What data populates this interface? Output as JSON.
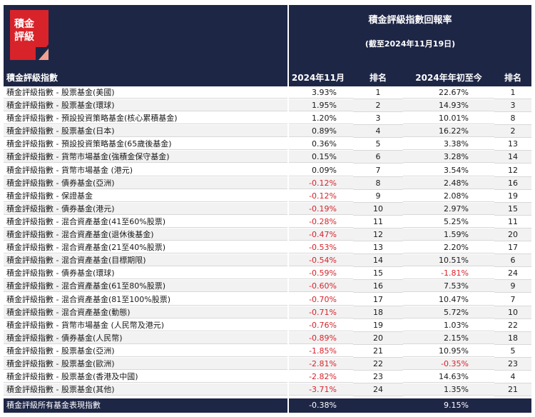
{
  "logo": {
    "line1": "積金",
    "line2": "評級"
  },
  "header": {
    "title": "積金評級指數回報率",
    "subtitle": "(截至2024年11月19日)"
  },
  "columns": {
    "name": "積金評級指數",
    "ret_nov": "2024年11月",
    "rank_nov": "排名",
    "ret_ytd": "2024年年初至今",
    "rank_ytd": "排名"
  },
  "rows": [
    {
      "name": "積金評級指數 - 股票基金(美國)",
      "ret_nov": "3.93%",
      "rank_nov": "1",
      "ret_ytd": "22.67%",
      "rank_ytd": "1"
    },
    {
      "name": "積金評級指數 - 股票基金(環球)",
      "ret_nov": "1.95%",
      "rank_nov": "2",
      "ret_ytd": "14.93%",
      "rank_ytd": "3"
    },
    {
      "name": "積金評級指數 - 預設投資策略基金(核心累積基金)",
      "ret_nov": "1.20%",
      "rank_nov": "3",
      "ret_ytd": "10.01%",
      "rank_ytd": "8"
    },
    {
      "name": "積金評級指數 - 股票基金(日本)",
      "ret_nov": "0.89%",
      "rank_nov": "4",
      "ret_ytd": "16.22%",
      "rank_ytd": "2"
    },
    {
      "name": "積金評級指數 - 預設投資策略基金(65歲後基金)",
      "ret_nov": "0.36%",
      "rank_nov": "5",
      "ret_ytd": "3.38%",
      "rank_ytd": "13"
    },
    {
      "name": "積金評級指數 - 貨幣市場基金(強積金保守基金)",
      "ret_nov": "0.15%",
      "rank_nov": "6",
      "ret_ytd": "3.28%",
      "rank_ytd": "14"
    },
    {
      "name": "積金評級指數 - 貨幣市場基金 (港元)",
      "ret_nov": "0.09%",
      "rank_nov": "7",
      "ret_ytd": "3.54%",
      "rank_ytd": "12"
    },
    {
      "name": "積金評級指數 - 債券基金(亞洲)",
      "ret_nov": "-0.12%",
      "rank_nov": "8",
      "ret_ytd": "2.48%",
      "rank_ytd": "16"
    },
    {
      "name": "積金評級指數 - 保證基金",
      "ret_nov": "-0.12%",
      "rank_nov": "9",
      "ret_ytd": "2.08%",
      "rank_ytd": "19"
    },
    {
      "name": "積金評級指數 - 債券基金(港元)",
      "ret_nov": "-0.19%",
      "rank_nov": "10",
      "ret_ytd": "2.97%",
      "rank_ytd": "15"
    },
    {
      "name": "積金評級指數 - 混合資產基金(41至60%股票)",
      "ret_nov": "-0.28%",
      "rank_nov": "11",
      "ret_ytd": "5.25%",
      "rank_ytd": "11"
    },
    {
      "name": "積金評級指數 - 混合資產基金(退休後基金)",
      "ret_nov": "-0.47%",
      "rank_nov": "12",
      "ret_ytd": "1.59%",
      "rank_ytd": "20"
    },
    {
      "name": "積金評級指數 - 混合資產基金(21至40%股票)",
      "ret_nov": "-0.53%",
      "rank_nov": "13",
      "ret_ytd": "2.20%",
      "rank_ytd": "17"
    },
    {
      "name": "積金評級指數 - 混合資產基金(目標期限)",
      "ret_nov": "-0.54%",
      "rank_nov": "14",
      "ret_ytd": "10.51%",
      "rank_ytd": "6"
    },
    {
      "name": "積金評級指數 - 債券基金(環球)",
      "ret_nov": "-0.59%",
      "rank_nov": "15",
      "ret_ytd": "-1.81%",
      "rank_ytd": "24"
    },
    {
      "name": "積金評級指數 - 混合資產基金(61至80%股票)",
      "ret_nov": "-0.60%",
      "rank_nov": "16",
      "ret_ytd": "7.53%",
      "rank_ytd": "9"
    },
    {
      "name": "積金評級指數 - 混合資產基金(81至100%股票)",
      "ret_nov": "-0.70%",
      "rank_nov": "17",
      "ret_ytd": "10.47%",
      "rank_ytd": "7"
    },
    {
      "name": "積金評級指數 - 混合資產基金(動態)",
      "ret_nov": "-0.71%",
      "rank_nov": "18",
      "ret_ytd": "5.72%",
      "rank_ytd": "10"
    },
    {
      "name": "積金評級指數 - 貨幣市場基金 (人民幣及港元)",
      "ret_nov": "-0.76%",
      "rank_nov": "19",
      "ret_ytd": "1.03%",
      "rank_ytd": "22"
    },
    {
      "name": "積金評級指數 - 債券基金(人民幣)",
      "ret_nov": "-0.89%",
      "rank_nov": "20",
      "ret_ytd": "2.15%",
      "rank_ytd": "18"
    },
    {
      "name": "積金評級指數 - 股票基金(亞洲)",
      "ret_nov": "-1.85%",
      "rank_nov": "21",
      "ret_ytd": "10.95%",
      "rank_ytd": "5"
    },
    {
      "name": "積金評級指數 - 股票基金(歐洲)",
      "ret_nov": "-2.81%",
      "rank_nov": "22",
      "ret_ytd": "-0.35%",
      "rank_ytd": "23"
    },
    {
      "name": "積金評級指數 - 股票基金(香港及中國)",
      "ret_nov": "-2.82%",
      "rank_nov": "23",
      "ret_ytd": "14.63%",
      "rank_ytd": "4"
    },
    {
      "name": "積金評級指數 - 股票基金(其他)",
      "ret_nov": "-3.71%",
      "rank_nov": "24",
      "ret_ytd": "1.35%",
      "rank_ytd": "21"
    }
  ],
  "total": {
    "name": "積金評級所有基金表現指數",
    "ret_nov": "-0.38%",
    "ret_ytd": "9.15%"
  },
  "colors": {
    "navy": "#1e2646",
    "logo_red": "#d8232a",
    "logo_salmon": "#f0a090",
    "negative": "#d8232a"
  }
}
